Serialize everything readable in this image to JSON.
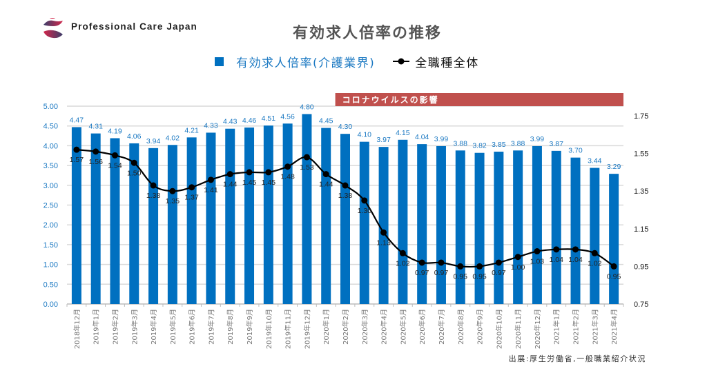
{
  "brand": {
    "name": "Professional Care Japan",
    "logo": "pcj-logo"
  },
  "chart_data": {
    "type": "bar+line",
    "title": "有効求人倍率の推移",
    "categories": [
      "2018年12月",
      "2019年1月",
      "2019年2月",
      "2019年3月",
      "2019年4月",
      "2019年5月",
      "2019年6月",
      "2019年7月",
      "2019年8月",
      "2019年9月",
      "2019年10月",
      "2019年11月",
      "2019年12月",
      "2020年1月",
      "2020年2月",
      "2020年3月",
      "2020年4月",
      "2020年5月",
      "2020年6月",
      "2020年7月",
      "2020年8月",
      "2020年9月",
      "2020年10月",
      "2020年11月",
      "2020年12月",
      "2021年1月",
      "2021年2月",
      "2021年3月",
      "2021年4月"
    ],
    "series": [
      {
        "name": "有効求人倍率(介護業界)",
        "type": "bar",
        "axis": "left",
        "color": "#0070c0",
        "values": [
          4.47,
          4.31,
          4.19,
          4.06,
          3.94,
          4.02,
          4.21,
          4.33,
          4.43,
          4.46,
          4.51,
          4.56,
          4.8,
          4.45,
          4.3,
          4.1,
          3.97,
          4.15,
          4.04,
          3.99,
          3.88,
          3.82,
          3.85,
          3.88,
          3.99,
          3.87,
          3.7,
          3.44,
          3.29
        ]
      },
      {
        "name": "全職種全体",
        "type": "line",
        "axis": "right",
        "color": "#000000",
        "values": [
          1.57,
          1.56,
          1.54,
          1.5,
          1.38,
          1.35,
          1.37,
          1.41,
          1.44,
          1.45,
          1.45,
          1.48,
          1.53,
          1.44,
          1.38,
          1.3,
          1.13,
          1.02,
          0.97,
          0.97,
          0.95,
          0.95,
          0.97,
          1.0,
          1.03,
          1.04,
          1.04,
          1.02,
          0.95
        ]
      }
    ],
    "y_left": {
      "lim": [
        0,
        5
      ],
      "ticks": [
        "0.00",
        "0.50",
        "1.00",
        "1.50",
        "2.00",
        "2.50",
        "3.00",
        "3.50",
        "4.00",
        "4.50",
        "5.00"
      ],
      "color": "#1a78c2"
    },
    "y_right": {
      "lim": [
        0.75,
        1.75
      ],
      "ticks": [
        "0.75",
        "0.95",
        "1.15",
        "1.35",
        "1.55",
        "1.75"
      ]
    },
    "grid": true,
    "legend": "top-center",
    "annotation": {
      "text": "コロナウイルスの影響",
      "from_category": "2020年2月",
      "color": "#c0504d"
    }
  },
  "source": "出展:厚生労働省,一般職業紹介状況"
}
